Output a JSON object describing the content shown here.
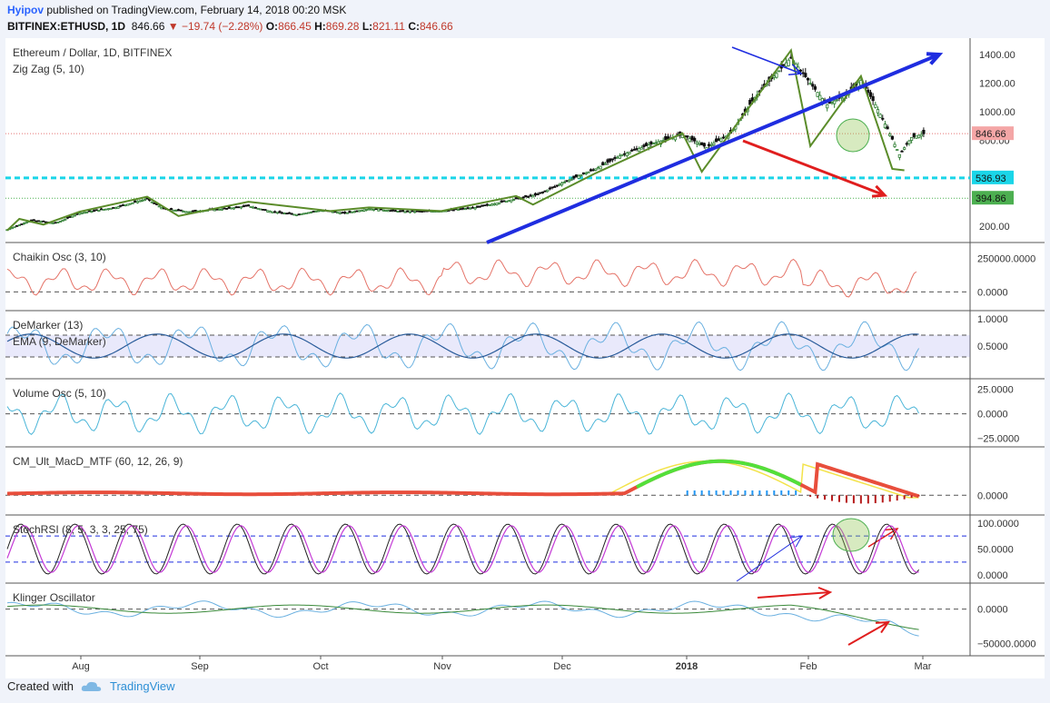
{
  "header": {
    "author": "Hyipov",
    "published": "published on TradingView.com, February 14, 2018 00:20 MSK",
    "symbol": "BITFINEX:ETHUSD, 1D",
    "last": "846.66",
    "change": "−19.74 (−2.28%)",
    "o_label": "O:",
    "o_value": "866.45",
    "h_label": "H:",
    "h_value": "869.28",
    "l_label": "L:",
    "l_value": "821.11",
    "c_label": "C:",
    "c_value": "846.66"
  },
  "footer": {
    "created_with": "Created with",
    "brand": "TradingView"
  },
  "colors": {
    "up": "#2e7d32",
    "down": "#111111",
    "zigzag": "#5b8c2a",
    "trend_blue": "#1f2de0",
    "arrow_red": "#e01e1e",
    "cyan": "#1ad5e8",
    "green_line": "#4caf50"
  },
  "chart_data": [
    {
      "type": "candlestick",
      "title": "Ethereum / Dollar, 1D, BITFINEX",
      "indicator": "Zig Zag (5, 10)",
      "y_ticks": [
        "1400.00",
        "1200.00",
        "1000.00",
        "800.00",
        "200.00"
      ],
      "y_tick_values": [
        1400,
        1200,
        1000,
        800,
        200
      ],
      "ylim": [
        110,
        1490
      ],
      "x_ticks": [
        "Aug",
        "Sep",
        "Oct",
        "Nov",
        "Dec",
        "2018",
        "Feb",
        "Mar"
      ],
      "price_labels": [
        {
          "text": "846.66",
          "value": 846.66,
          "color": "#f4a6a6"
        },
        {
          "text": "536.93",
          "value": 536.93,
          "color": "#1ad5e8"
        },
        {
          "text": "394.86",
          "value": 394.86,
          "color": "#4caf50"
        }
      ],
      "zigzag_points": [
        [
          0,
          170
        ],
        [
          5,
          250
        ],
        [
          15,
          210
        ],
        [
          30,
          300
        ],
        [
          58,
          405
        ],
        [
          71,
          270
        ],
        [
          100,
          370
        ],
        [
          134,
          305
        ],
        [
          150,
          330
        ],
        [
          180,
          305
        ],
        [
          211,
          410
        ],
        [
          218,
          350
        ],
        [
          244,
          570
        ],
        [
          280,
          850
        ],
        [
          288,
          580
        ],
        [
          325,
          1430
        ],
        [
          333,
          760
        ],
        [
          354,
          1250
        ],
        [
          367,
          600
        ],
        [
          372,
          590
        ]
      ],
      "close_points": [
        [
          0,
          175
        ],
        [
          10,
          240
        ],
        [
          20,
          220
        ],
        [
          30,
          290
        ],
        [
          45,
          330
        ],
        [
          58,
          390
        ],
        [
          65,
          320
        ],
        [
          75,
          300
        ],
        [
          90,
          320
        ],
        [
          100,
          340
        ],
        [
          110,
          300
        ],
        [
          120,
          280
        ],
        [
          130,
          310
        ],
        [
          140,
          290
        ],
        [
          150,
          320
        ],
        [
          165,
          300
        ],
        [
          180,
          305
        ],
        [
          195,
          330
        ],
        [
          211,
          390
        ],
        [
          220,
          420
        ],
        [
          230,
          500
        ],
        [
          244,
          600
        ],
        [
          255,
          700
        ],
        [
          268,
          780
        ],
        [
          280,
          840
        ],
        [
          290,
          750
        ],
        [
          300,
          850
        ],
        [
          310,
          1100
        ],
        [
          318,
          1250
        ],
        [
          325,
          1380
        ],
        [
          333,
          1200
        ],
        [
          340,
          1050
        ],
        [
          348,
          1120
        ],
        [
          354,
          1220
        ],
        [
          360,
          1050
        ],
        [
          365,
          880
        ],
        [
          370,
          700
        ],
        [
          375,
          820
        ],
        [
          380,
          846
        ]
      ]
    },
    {
      "type": "line",
      "title": "Chaikin Osc (3, 10)",
      "y_ticks": [
        "250000.0000",
        "0.0000"
      ],
      "y_tick_values": [
        250000,
        0
      ],
      "ylim": [
        -100000,
        330000
      ]
    },
    {
      "type": "line",
      "title": "DeMarker (13)",
      "subtitle": "EMA (9, DeMarker)",
      "y_ticks": [
        "1.0000",
        "0.5000"
      ],
      "y_tick_values": [
        1,
        0.5
      ],
      "ylim": [
        0,
        1.05
      ]
    },
    {
      "type": "line",
      "title": "Volume Osc (5, 10)",
      "y_ticks": [
        "25.0000",
        "0.0000",
        "−25.0000"
      ],
      "y_tick_values": [
        25,
        0,
        -25
      ],
      "ylim": [
        -28,
        30
      ]
    },
    {
      "type": "line",
      "title": "CM_Ult_MacD_MTF (60, 12, 26, 9)",
      "y_ticks": [
        "0.0000"
      ],
      "y_tick_values": [
        0
      ],
      "ylim": [
        -60,
        180
      ]
    },
    {
      "type": "line",
      "title": "StochRSI (8, 5, 3, 3, 25, 75)",
      "y_ticks": [
        "100.0000",
        "50.0000",
        "0.0000"
      ],
      "y_tick_values": [
        100,
        50,
        0
      ],
      "ylim": [
        -5,
        105
      ]
    },
    {
      "type": "line",
      "title": "Klinger Oscillator",
      "y_ticks": [
        "0.0000",
        "−50000.0000"
      ],
      "y_tick_values": [
        0,
        -50000
      ],
      "ylim": [
        -60000,
        30000
      ]
    }
  ]
}
